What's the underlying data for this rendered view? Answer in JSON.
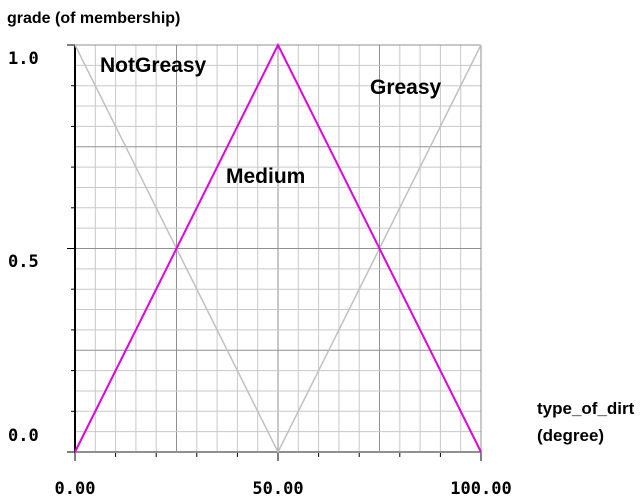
{
  "chart_data": {
    "type": "line",
    "ylabel": "grade (of membership)",
    "xlabel_line1": "type_of_dirt",
    "xlabel_line2": "(degree)",
    "xlim": [
      0,
      100
    ],
    "ylim": [
      0,
      1
    ],
    "x_tick_labels": [
      "0.00",
      "50.00",
      "100.00"
    ],
    "y_tick_labels": [
      "0.0",
      "0.5",
      "1.0"
    ],
    "grid": true,
    "series": [
      {
        "name": "NotGreasy",
        "x": [
          0,
          50,
          100
        ],
        "y": [
          1,
          0,
          0
        ],
        "color": "#c0c0c0"
      },
      {
        "name": "Medium",
        "x": [
          0,
          50,
          100
        ],
        "y": [
          0,
          1,
          0
        ],
        "color": "#e000e0"
      },
      {
        "name": "Greasy",
        "x": [
          0,
          50,
          100
        ],
        "y": [
          0,
          0,
          1
        ],
        "color": "#c0c0c0"
      }
    ],
    "annotations": [
      "NotGreasy",
      "Medium",
      "Greasy"
    ]
  }
}
